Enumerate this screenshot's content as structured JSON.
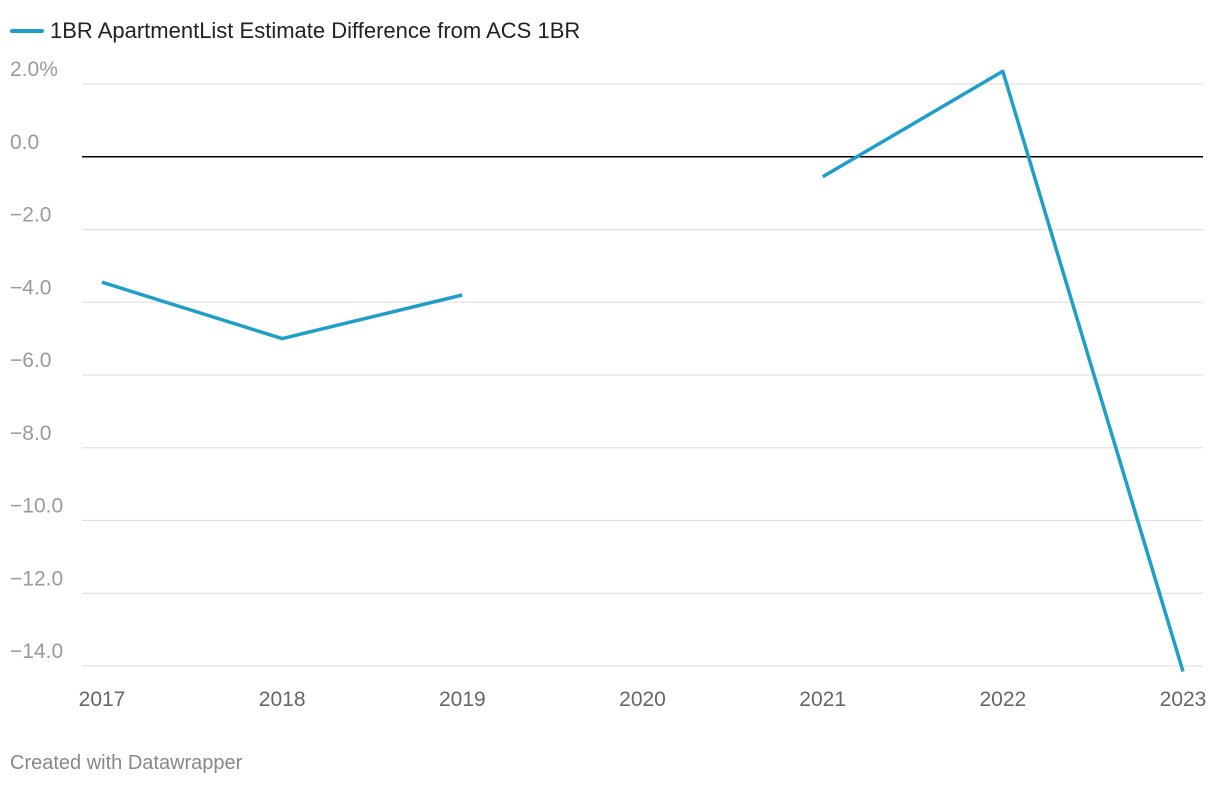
{
  "chart_data": {
    "type": "line",
    "title": "",
    "x": [
      "2017",
      "2018",
      "2019",
      "2020",
      "2021",
      "2022",
      "2023"
    ],
    "xlabel": "",
    "ylabel": "",
    "ylim": [
      -14.0,
      2.0
    ],
    "yticks": [
      {
        "value": 2.0,
        "label": "2.0%"
      },
      {
        "value": 0.0,
        "label": "0.0"
      },
      {
        "value": -2.0,
        "label": "−2.0"
      },
      {
        "value": -4.0,
        "label": "−4.0"
      },
      {
        "value": -6.0,
        "label": "−6.0"
      },
      {
        "value": -8.0,
        "label": "−8.0"
      },
      {
        "value": -10.0,
        "label": "−10.0"
      },
      {
        "value": -12.0,
        "label": "−12.0"
      },
      {
        "value": -14.0,
        "label": "−14.0"
      }
    ],
    "zero_line": 0.0,
    "series": [
      {
        "name": "1BR ApartmentList Estimate Difference from ACS 1BR",
        "color": "#1f9fc8",
        "points": [
          {
            "x": 2017.0,
            "y": -3.45
          },
          {
            "x": 2018.0,
            "y": -5.0
          },
          {
            "x": 2019.0,
            "y": -3.8
          },
          {
            "x": 2020.0,
            "y": null
          },
          {
            "x": 2021.0,
            "y": -0.55
          },
          {
            "x": 2022.0,
            "y": 2.35
          },
          {
            "x": 2023.0,
            "y": -14.15
          }
        ]
      }
    ],
    "legend_position": "top-left",
    "grid": true
  },
  "footer": {
    "credit": "Created with Datawrapper"
  },
  "colors": {
    "grid": "#e2e2e2",
    "zero": "#000000"
  }
}
